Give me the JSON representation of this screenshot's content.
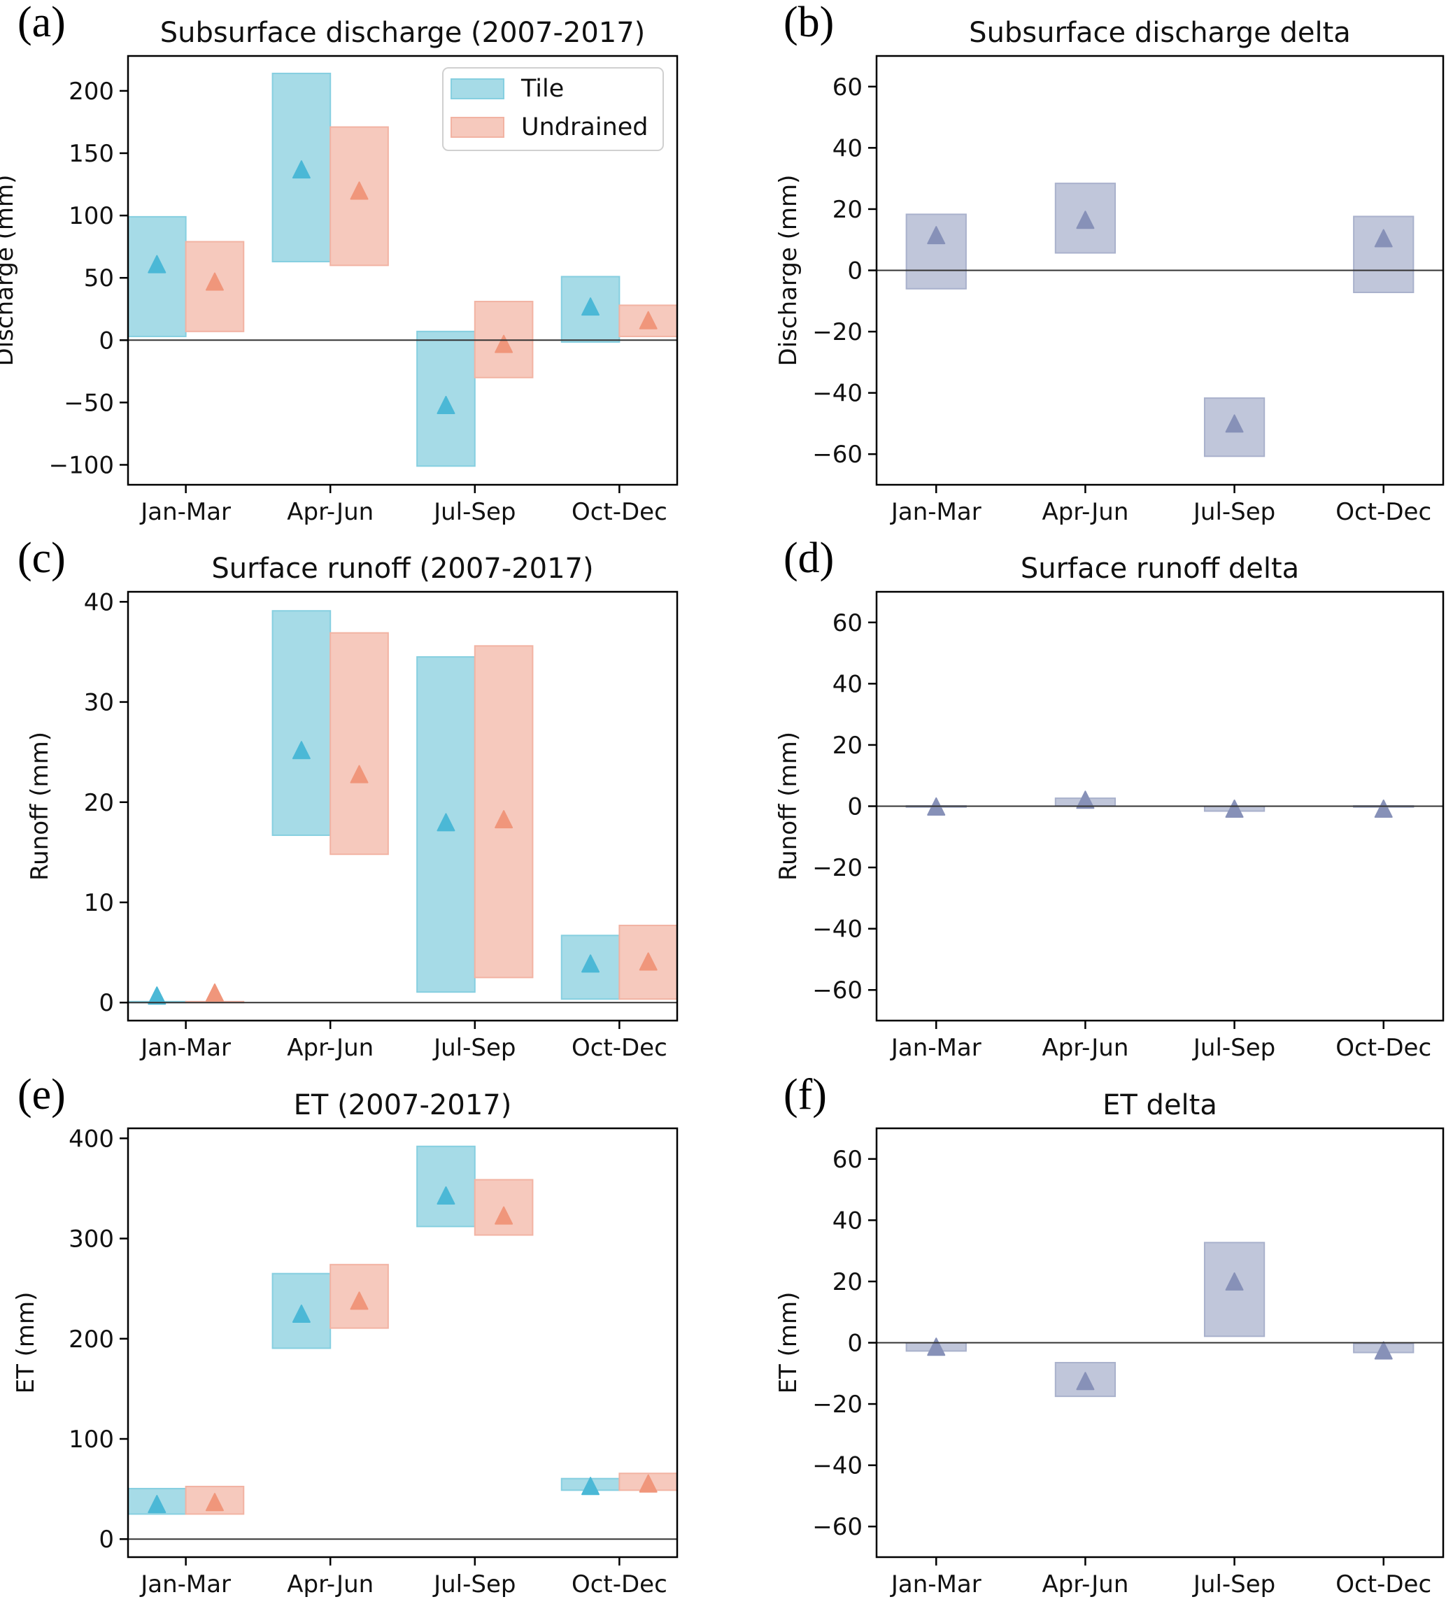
{
  "figure": {
    "colors": {
      "tile_fill": "#a6dbe7",
      "tile_edge": "#86cfe0",
      "tile_marker": "#4bb8d6",
      "undrained_fill": "#f6c9bd",
      "undrained_edge": "#f2b3a3",
      "undrained_marker": "#f0967b",
      "delta_fill": "#c0c6da",
      "delta_edge": "#a9b1cc",
      "delta_marker": "#8791b8"
    }
  },
  "chart_data": [
    {
      "id": "a",
      "panel_label": "(a)",
      "type": "bar",
      "style": "range-box-with-marker",
      "title": "Subsurface discharge (2007-2017)",
      "xlabel": "",
      "ylabel": "Discharge (mm)",
      "categories": [
        "Jan-Mar",
        "Apr-Jun",
        "Jul-Sep",
        "Oct-Dec"
      ],
      "ylim": [
        -116,
        228
      ],
      "yticks": [
        -100,
        -50,
        0,
        50,
        100,
        150,
        200
      ],
      "ytick_labels": [
        "−100",
        "−50",
        "0",
        "50",
        "100",
        "150",
        "200"
      ],
      "zero_line": true,
      "grid": false,
      "legend": {
        "position": "top-right",
        "entries": [
          "Tile",
          "Undrained"
        ]
      },
      "series": [
        {
          "name": "Tile",
          "mean": [
            61,
            137,
            -52,
            27
          ],
          "low": [
            3,
            63,
            -101,
            -1.5
          ],
          "high": [
            99,
            214,
            7,
            51
          ]
        },
        {
          "name": "Undrained",
          "mean": [
            47,
            120,
            -3,
            16
          ],
          "low": [
            7,
            60,
            -30,
            3
          ],
          "high": [
            79,
            171,
            31,
            28
          ]
        }
      ]
    },
    {
      "id": "b",
      "panel_label": "(b)",
      "type": "bar",
      "style": "range-box-with-marker",
      "title": "Subsurface discharge delta",
      "xlabel": "",
      "ylabel": "Discharge (mm)",
      "categories": [
        "Jan-Mar",
        "Apr-Jun",
        "Jul-Sep",
        "Oct-Dec"
      ],
      "ylim": [
        -70,
        70
      ],
      "yticks": [
        -60,
        -40,
        -20,
        0,
        20,
        40,
        60
      ],
      "ytick_labels": [
        "−60",
        "−40",
        "−20",
        "0",
        "20",
        "40",
        "60"
      ],
      "zero_line": true,
      "grid": false,
      "series": [
        {
          "name": "Delta",
          "mean": [
            11.5,
            16.5,
            -50,
            10.5
          ],
          "low": [
            -6,
            5.7,
            -60.7,
            -7.2
          ],
          "high": [
            18.3,
            28.4,
            -41.7,
            17.6
          ]
        }
      ]
    },
    {
      "id": "c",
      "panel_label": "(c)",
      "type": "bar",
      "style": "range-box-with-marker",
      "title": "Surface runoff (2007-2017)",
      "xlabel": "",
      "ylabel": "Runoff (mm)",
      "categories": [
        "Jan-Mar",
        "Apr-Jun",
        "Jul-Sep",
        "Oct-Dec"
      ],
      "ylim": [
        -1.8,
        41
      ],
      "yticks": [
        0,
        10,
        20,
        30,
        40
      ],
      "ytick_labels": [
        "0",
        "10",
        "20",
        "30",
        "40"
      ],
      "zero_line": true,
      "grid": false,
      "series": [
        {
          "name": "Tile",
          "mean": [
            0.7,
            25.2,
            18,
            3.9
          ],
          "low": [
            0,
            16.7,
            1.05,
            0.35
          ],
          "high": [
            0.1,
            39.1,
            34.5,
            6.7
          ]
        },
        {
          "name": "Undrained",
          "mean": [
            1.0,
            22.8,
            18.3,
            4.1
          ],
          "low": [
            0,
            14.8,
            2.5,
            0.35
          ],
          "high": [
            0.1,
            36.9,
            35.6,
            7.7
          ]
        }
      ]
    },
    {
      "id": "d",
      "panel_label": "(d)",
      "type": "bar",
      "style": "range-box-with-marker",
      "title": "Surface runoff delta",
      "xlabel": "",
      "ylabel": "Runoff (mm)",
      "categories": [
        "Jan-Mar",
        "Apr-Jun",
        "Jul-Sep",
        "Oct-Dec"
      ],
      "ylim": [
        -70,
        70
      ],
      "yticks": [
        -60,
        -40,
        -20,
        0,
        20,
        40,
        60
      ],
      "ytick_labels": [
        "−60",
        "−40",
        "−20",
        "0",
        "20",
        "40",
        "60"
      ],
      "zero_line": true,
      "grid": false,
      "series": [
        {
          "name": "Delta",
          "mean": [
            -0.1,
            2.1,
            -0.8,
            -0.8
          ],
          "low": [
            -0.3,
            0.1,
            -1.6,
            -0.3
          ],
          "high": [
            0.1,
            2.6,
            0,
            0.1
          ]
        }
      ]
    },
    {
      "id": "e",
      "panel_label": "(e)",
      "type": "bar",
      "style": "range-box-with-marker",
      "title": "ET (2007-2017)",
      "xlabel": "",
      "ylabel": "ET (mm)",
      "categories": [
        "Jan-Mar",
        "Apr-Jun",
        "Jul-Sep",
        "Oct-Dec"
      ],
      "ylim": [
        -18,
        410
      ],
      "yticks": [
        0,
        100,
        200,
        300,
        400
      ],
      "ytick_labels": [
        "0",
        "100",
        "200",
        "300",
        "400"
      ],
      "zero_line": true,
      "grid": false,
      "series": [
        {
          "name": "Tile",
          "mean": [
            35,
            225,
            343,
            53
          ],
          "low": [
            25,
            190.5,
            312,
            48.8
          ],
          "high": [
            50.4,
            265,
            392,
            60.4
          ]
        },
        {
          "name": "Undrained",
          "mean": [
            37,
            238,
            323,
            55.5
          ],
          "low": [
            25,
            210.6,
            303.5,
            48.8
          ],
          "high": [
            52.5,
            274,
            358.7,
            65.6
          ]
        }
      ]
    },
    {
      "id": "f",
      "panel_label": "(f)",
      "type": "bar",
      "style": "range-box-with-marker",
      "title": "ET delta",
      "xlabel": "",
      "ylabel": "ET (mm)",
      "categories": [
        "Jan-Mar",
        "Apr-Jun",
        "Jul-Sep",
        "Oct-Dec"
      ],
      "ylim": [
        -70,
        70
      ],
      "yticks": [
        -60,
        -40,
        -20,
        0,
        20,
        40,
        60
      ],
      "ytick_labels": [
        "−60",
        "−40",
        "−20",
        "0",
        "20",
        "40",
        "60"
      ],
      "zero_line": true,
      "grid": false,
      "series": [
        {
          "name": "Delta",
          "mean": [
            -1.3,
            -12.5,
            20,
            -2.5
          ],
          "low": [
            -2.7,
            -17.5,
            2.1,
            -3.2
          ],
          "high": [
            0,
            -6.5,
            32.7,
            -0.3
          ]
        }
      ]
    }
  ]
}
